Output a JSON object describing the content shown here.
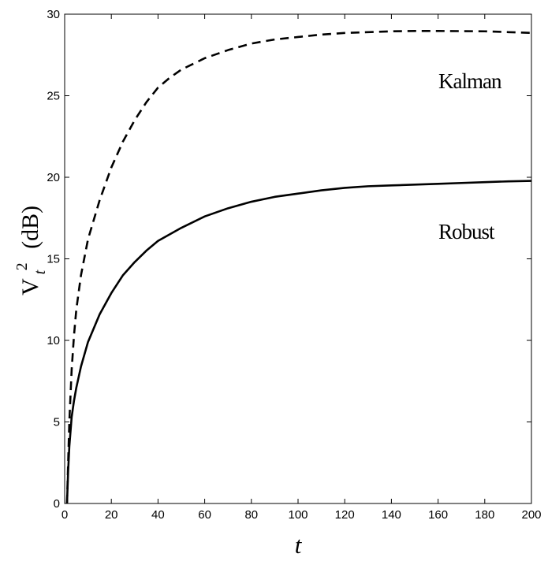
{
  "chart_data": {
    "type": "line",
    "title": "",
    "xlabel": "t",
    "ylabel": {
      "base": "V",
      "subscript": "t",
      "superscript": "2",
      "unit": "(dB)"
    },
    "xlim": [
      0,
      200
    ],
    "ylim": [
      0,
      30
    ],
    "xticks": [
      0,
      20,
      40,
      60,
      80,
      100,
      120,
      140,
      160,
      180,
      200
    ],
    "yticks": [
      0,
      5,
      10,
      15,
      20,
      25,
      30
    ],
    "grid": false,
    "legend": "none",
    "annotations": [
      {
        "text": "Kalman",
        "series": "Kalman"
      },
      {
        "text": "Robust",
        "series": "Robust"
      }
    ],
    "series": [
      {
        "name": "Kalman",
        "style": "dashed",
        "color": "#000000",
        "x": [
          1,
          2,
          3,
          4,
          5,
          7,
          10,
          15,
          20,
          25,
          30,
          35,
          40,
          45,
          50,
          60,
          70,
          80,
          90,
          100,
          110,
          120,
          130,
          140,
          150,
          160,
          170,
          180,
          190,
          200
        ],
        "y": [
          0,
          5.0,
          8.2,
          10.3,
          11.9,
          14.0,
          16.2,
          18.6,
          20.6,
          22.2,
          23.5,
          24.6,
          25.5,
          26.1,
          26.6,
          27.3,
          27.8,
          28.2,
          28.45,
          28.6,
          28.75,
          28.85,
          28.9,
          28.95,
          28.97,
          28.97,
          28.96,
          28.95,
          28.9,
          28.85
        ]
      },
      {
        "name": "Robust",
        "style": "solid",
        "color": "#000000",
        "x": [
          1,
          1.5,
          2,
          3,
          4,
          5,
          7,
          10,
          15,
          20,
          25,
          30,
          35,
          40,
          50,
          60,
          70,
          80,
          90,
          100,
          110,
          120,
          130,
          140,
          150,
          160,
          170,
          180,
          190,
          200
        ],
        "y": [
          0,
          2.0,
          3.5,
          5.3,
          6.3,
          7.1,
          8.4,
          9.9,
          11.6,
          12.9,
          14.0,
          14.8,
          15.5,
          16.1,
          16.9,
          17.6,
          18.1,
          18.5,
          18.8,
          19.0,
          19.2,
          19.35,
          19.45,
          19.5,
          19.55,
          19.6,
          19.65,
          19.7,
          19.75,
          19.78
        ]
      }
    ]
  }
}
